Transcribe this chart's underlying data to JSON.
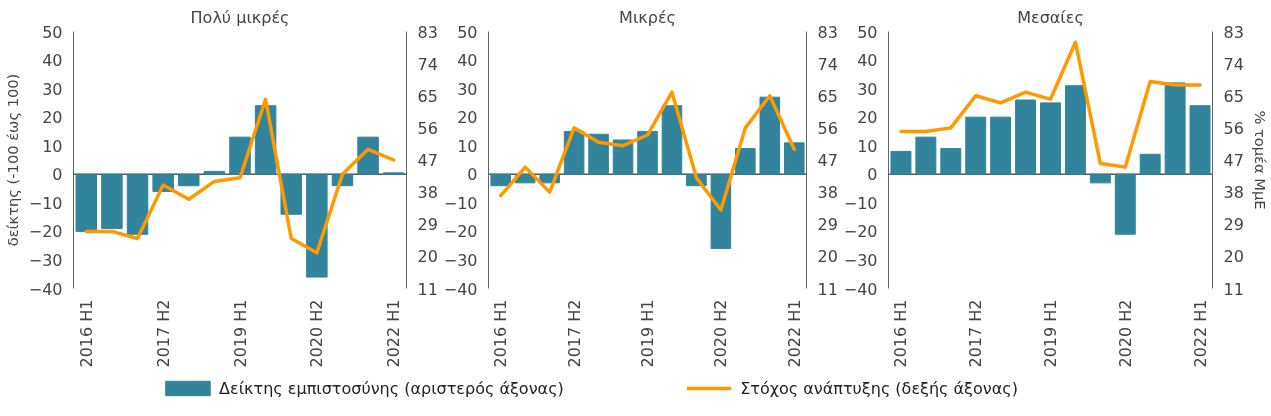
{
  "chart_data": [
    {
      "type": "bar",
      "title": "Πολύ μικρές",
      "ylabel": "δείκτης (-100 έως 100)",
      "legend": "bottom",
      "categories": [
        "2016 H1",
        null,
        null,
        "2017 H2",
        null,
        null,
        "2019 H1",
        null,
        null,
        "2020 H2",
        null,
        null,
        "2022 H1"
      ],
      "ylim": [
        -40,
        50
      ],
      "yticks": [
        -40,
        -30,
        -20,
        -10,
        0,
        10,
        20,
        30,
        40,
        50
      ],
      "y2lim": [
        11,
        83
      ],
      "y2ticks": [
        11,
        20,
        29,
        38,
        47,
        56,
        65,
        74,
        83
      ],
      "series": [
        {
          "name": "Δείκτης εμπιστοσύνης (αριστερός άξονας)",
          "color": "#31849b",
          "values": [
            -20,
            -19,
            -21,
            -6,
            -4,
            1,
            13,
            24,
            -14,
            -36,
            -4,
            13,
            0.5
          ]
        },
        {
          "name": "Στόχος ανάπτυξης (δεξής άξονας)",
          "type": "line",
          "axis": "y2",
          "color": "#ff9900",
          "values": [
            27,
            27,
            25,
            40,
            36,
            41,
            42,
            64,
            25,
            21,
            43,
            50,
            47
          ]
        }
      ]
    },
    {
      "type": "bar",
      "title": "Μικρές",
      "categories": [
        "2016 H1",
        null,
        null,
        "2017 H2",
        null,
        null,
        "2019 H1",
        null,
        null,
        "2020 H2",
        null,
        null,
        "2022 H1"
      ],
      "ylim": [
        -40,
        50
      ],
      "yticks": [
        -40,
        -30,
        -20,
        -10,
        0,
        10,
        20,
        30,
        40,
        50
      ],
      "y2lim": [
        11,
        83
      ],
      "y2ticks": [
        11,
        20,
        29,
        38,
        47,
        56,
        65,
        74,
        83
      ],
      "series": [
        {
          "color": "#31849b",
          "values": [
            -4,
            -3,
            -3,
            15,
            14,
            12,
            15,
            24,
            -4,
            -26,
            9,
            27,
            11
          ]
        },
        {
          "type": "line",
          "axis": "y2",
          "color": "#ff9900",
          "values": [
            37,
            45,
            38,
            56,
            52,
            51,
            54,
            66,
            42,
            33,
            56,
            65,
            50
          ]
        }
      ]
    },
    {
      "type": "bar",
      "title": "Μεσαίες",
      "y2label": "% τομέα ΜμΕ",
      "categories": [
        "2016 H1",
        null,
        null,
        "2017 H2",
        null,
        null,
        "2019 H1",
        null,
        null,
        "2020 H2",
        null,
        null,
        "2022 H1"
      ],
      "ylim": [
        -40,
        50
      ],
      "yticks": [
        -40,
        -30,
        -20,
        -10,
        0,
        10,
        20,
        30,
        40,
        50
      ],
      "y2lim": [
        11,
        83
      ],
      "y2ticks": [
        11,
        20,
        29,
        38,
        47,
        56,
        65,
        74,
        83
      ],
      "series": [
        {
          "color": "#31849b",
          "values": [
            8,
            13,
            9,
            20,
            20,
            26,
            25,
            31,
            -3,
            -21,
            7,
            32,
            24
          ]
        },
        {
          "type": "line",
          "axis": "y2",
          "color": "#ff9900",
          "values": [
            55,
            55,
            56,
            65,
            63,
            66,
            64,
            80,
            46,
            45,
            69,
            68,
            68
          ]
        }
      ]
    }
  ]
}
